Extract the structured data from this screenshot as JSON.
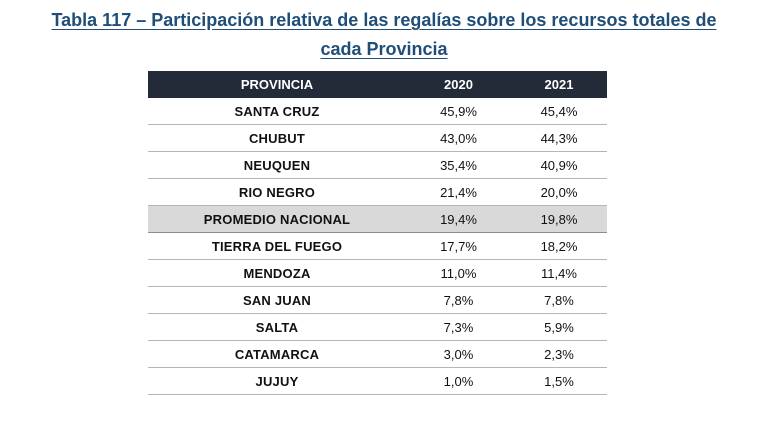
{
  "title": {
    "line1": "Tabla 117 – Participación relativa de las regalías sobre los recursos totales de",
    "line2": "cada Provincia"
  },
  "table": {
    "headers": [
      "PROVINCIA",
      "2020",
      "2021"
    ],
    "rows": [
      {
        "provincia": "SANTA CRUZ",
        "y2020": "45,9%",
        "y2021": "45,4%",
        "highlight": false
      },
      {
        "provincia": "CHUBUT",
        "y2020": "43,0%",
        "y2021": "44,3%",
        "highlight": false
      },
      {
        "provincia": "NEUQUEN",
        "y2020": "35,4%",
        "y2021": "40,9%",
        "highlight": false
      },
      {
        "provincia": "RIO NEGRO",
        "y2020": "21,4%",
        "y2021": "20,0%",
        "highlight": false
      },
      {
        "provincia": "PROMEDIO NACIONAL",
        "y2020": "19,4%",
        "y2021": "19,8%",
        "highlight": true
      },
      {
        "provincia": "TIERRA DEL FUEGO",
        "y2020": "17,7%",
        "y2021": "18,2%",
        "highlight": false
      },
      {
        "provincia": "MENDOZA",
        "y2020": "11,0%",
        "y2021": "11,4%",
        "highlight": false
      },
      {
        "provincia": "SAN JUAN",
        "y2020": "7,8%",
        "y2021": "7,8%",
        "highlight": false
      },
      {
        "provincia": "SALTA",
        "y2020": "7,3%",
        "y2021": "5,9%",
        "highlight": false
      },
      {
        "provincia": "CATAMARCA",
        "y2020": "3,0%",
        "y2021": "2,3%",
        "highlight": false
      },
      {
        "provincia": "JUJUY",
        "y2020": "1,0%",
        "y2021": "1,5%",
        "highlight": false
      }
    ]
  },
  "colors": {
    "title": "#1f4e79",
    "header_bg": "#232b38",
    "header_text": "#ffffff",
    "highlight_bg": "#d9d9d9"
  }
}
